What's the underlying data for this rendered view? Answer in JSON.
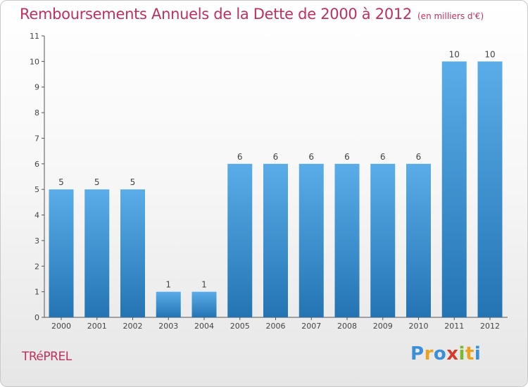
{
  "header": {
    "title": "Remboursements Annuels de la Dette de 2000 à 2012",
    "subtitle": "(en milliers d'€)"
  },
  "footer": {
    "commune": "TRéPREL",
    "logo_letters": [
      "P",
      "r",
      "o",
      "x",
      "i",
      "t",
      "i"
    ],
    "logo_colors": [
      "#3a8fd8",
      "#e8a21b",
      "#3a8fd8",
      "#d63c2e",
      "#7ab82f",
      "#e8a21b",
      "#3a8fd8"
    ]
  },
  "chart_data": {
    "type": "bar",
    "categories": [
      "2000",
      "2001",
      "2002",
      "2003",
      "2004",
      "2005",
      "2006",
      "2007",
      "2008",
      "2009",
      "2010",
      "2011",
      "2012"
    ],
    "values": [
      5,
      5,
      5,
      1,
      1,
      6,
      6,
      6,
      6,
      6,
      6,
      10,
      10
    ],
    "data_labels": [
      "5",
      "5",
      "5",
      "1",
      "1",
      "6",
      "6",
      "6",
      "6",
      "6",
      "6",
      "10",
      "10"
    ],
    "title": "Remboursements Annuels de la Dette de 2000 à 2012",
    "xlabel": "",
    "ylabel": "",
    "ylim": [
      0,
      11
    ],
    "yticks": [
      "0",
      "1",
      "2",
      "3",
      "4",
      "5",
      "6",
      "7",
      "8",
      "9",
      "10",
      "11"
    ],
    "grid": false,
    "legend": "none",
    "bar_color_light": "#5aade8",
    "bar_color_dark": "#2474b4"
  }
}
